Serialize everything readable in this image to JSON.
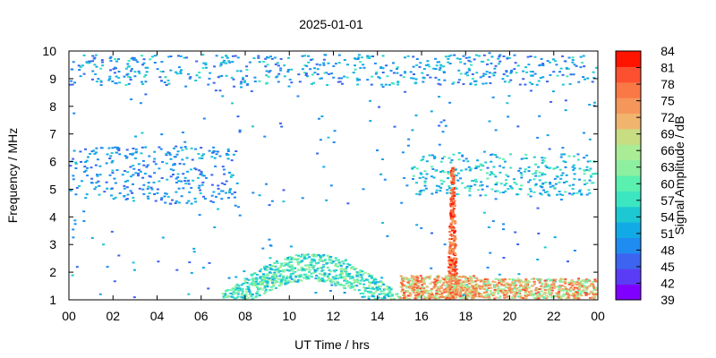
{
  "chart_data": {
    "type": "heatmap",
    "title": "2025-01-01",
    "xlabel": "UT Time / hrs",
    "ylabel": "Frequency / MHz",
    "xlim": [
      0,
      24
    ],
    "ylim": [
      1,
      10
    ],
    "x_tick_labels": [
      "00",
      "02",
      "04",
      "06",
      "08",
      "10",
      "12",
      "14",
      "16",
      "18",
      "20",
      "22",
      "00"
    ],
    "y_ticks": [
      1,
      2,
      3,
      4,
      5,
      6,
      7,
      8,
      9,
      10
    ],
    "colorbar": {
      "label": "Signal Amplitude / dB",
      "range": [
        39,
        84
      ],
      "tick_values": [
        39,
        42,
        45,
        48,
        51,
        54,
        57,
        60,
        63,
        66,
        69,
        72,
        75,
        78,
        81,
        84
      ],
      "colors": [
        "#8000ff",
        "#5a3cf5",
        "#3c64f0",
        "#1e8cf0",
        "#12aae6",
        "#1ec8d2",
        "#3ce6c0",
        "#5af0b0",
        "#8cf0a0",
        "#aaec96",
        "#c8dc82",
        "#f0b46e",
        "#f5965a",
        "#fa7846",
        "#fc5030",
        "#ff1400"
      ]
    },
    "regions": [
      {
        "name": "sparse-background",
        "x": [
          0,
          24
        ],
        "y": [
          1,
          10
        ],
        "value_range": [
          45,
          54
        ]
      },
      {
        "name": "upper-band-noise",
        "x": [
          0,
          24
        ],
        "y": [
          8.8,
          9.9
        ],
        "value_range": [
          45,
          57
        ]
      },
      {
        "name": "mid-band-noise-morning",
        "x": [
          0,
          7.5
        ],
        "y": [
          4.5,
          6.6
        ],
        "value_range": [
          45,
          54
        ]
      },
      {
        "name": "mid-band-noise-evening",
        "x": [
          15.5,
          24
        ],
        "y": [
          4.8,
          6.3
        ],
        "value_range": [
          48,
          60
        ]
      },
      {
        "name": "daytime-arc",
        "x": [
          6.8,
          15.0
        ],
        "y": [
          1.0,
          2.8
        ],
        "value_range": [
          51,
          66
        ]
      },
      {
        "name": "burst-17.5h",
        "x": [
          17.1,
          17.8
        ],
        "y": [
          1.0,
          5.8
        ],
        "value_range": [
          72,
          84
        ]
      },
      {
        "name": "low-band-afternoon",
        "x": [
          15.0,
          18.5
        ],
        "y": [
          1.0,
          1.9
        ],
        "value_range": [
          63,
          81
        ]
      },
      {
        "name": "low-band-evening",
        "x": [
          18.5,
          24
        ],
        "y": [
          1.0,
          1.8
        ],
        "value_range": [
          60,
          81
        ]
      }
    ]
  }
}
